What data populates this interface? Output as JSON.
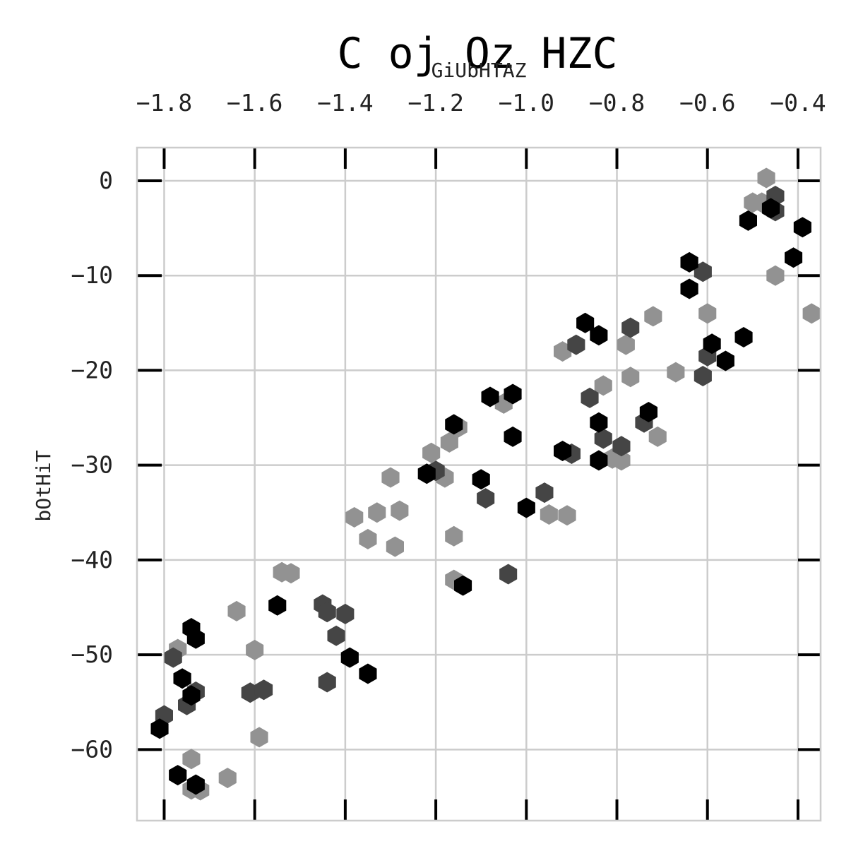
{
  "chart_data": {
    "type": "scatter",
    "title": "C oj Oz HZC",
    "xlabel": "GiUbHTAZ",
    "ylabel": "bOtHiT",
    "xlim": [
      -1.86,
      -0.35
    ],
    "ylim": [
      -67.5,
      3.5
    ],
    "x_axis_position": "top",
    "marker": "hexagon",
    "grid": true,
    "x_ticks": [
      -1.8,
      -1.6,
      -1.4,
      -1.2,
      -1.0,
      -0.8,
      -0.6,
      -0.4
    ],
    "x_tick_labels": [
      "−1.8",
      "−1.6",
      "−1.4",
      "−1.2",
      "−1.0",
      "−0.8",
      "−0.6",
      "−0.4"
    ],
    "y_ticks": [
      0,
      -10,
      -20,
      -30,
      -40,
      -50,
      -60
    ],
    "y_tick_labels": [
      "0",
      "−10",
      "−20",
      "−30",
      "−40",
      "−50",
      "−60"
    ],
    "series": [
      {
        "color": "#000000",
        "points": [
          [
            -1.81,
            -57.8
          ],
          [
            -1.77,
            -62.7
          ],
          [
            -1.76,
            -52.5
          ],
          [
            -1.74,
            -54.3
          ],
          [
            -1.74,
            -47.2
          ],
          [
            -1.73,
            -48.3
          ],
          [
            -1.73,
            -63.7
          ],
          [
            -1.55,
            -44.8
          ],
          [
            -1.39,
            -50.3
          ],
          [
            -1.35,
            -52.0
          ],
          [
            -1.22,
            -30.9
          ],
          [
            -1.16,
            -25.7
          ],
          [
            -1.14,
            -42.7
          ],
          [
            -1.1,
            -31.5
          ],
          [
            -1.08,
            -22.8
          ],
          [
            -1.03,
            -22.5
          ],
          [
            -1.03,
            -27.0
          ],
          [
            -1.0,
            -34.5
          ],
          [
            -0.92,
            -28.5
          ],
          [
            -0.87,
            -15.0
          ],
          [
            -0.84,
            -16.3
          ],
          [
            -0.84,
            -25.5
          ],
          [
            -0.84,
            -29.5
          ],
          [
            -0.73,
            -24.4
          ],
          [
            -0.64,
            -8.6
          ],
          [
            -0.64,
            -11.4
          ],
          [
            -0.59,
            -17.2
          ],
          [
            -0.56,
            -19.0
          ],
          [
            -0.52,
            -16.5
          ],
          [
            -0.51,
            -4.2
          ],
          [
            -0.46,
            -2.9
          ],
          [
            -0.41,
            -8.1
          ],
          [
            -0.39,
            -4.9
          ]
        ]
      },
      {
        "color": "#454545",
        "points": [
          [
            -1.8,
            -56.4
          ],
          [
            -1.78,
            -50.3
          ],
          [
            -1.75,
            -55.3
          ],
          [
            -1.73,
            -53.9
          ],
          [
            -1.61,
            -54.0
          ],
          [
            -1.58,
            -53.7
          ],
          [
            -1.45,
            -44.7
          ],
          [
            -1.44,
            -45.5
          ],
          [
            -1.42,
            -48.0
          ],
          [
            -1.4,
            -45.7
          ],
          [
            -1.44,
            -52.9
          ],
          [
            -1.2,
            -30.6
          ],
          [
            -1.09,
            -33.5
          ],
          [
            -1.04,
            -41.5
          ],
          [
            -0.96,
            -32.9
          ],
          [
            -0.9,
            -28.8
          ],
          [
            -0.89,
            -17.3
          ],
          [
            -0.86,
            -22.9
          ],
          [
            -0.83,
            -27.2
          ],
          [
            -0.79,
            -28.0
          ],
          [
            -0.77,
            -15.5
          ],
          [
            -0.74,
            -25.5
          ],
          [
            -0.61,
            -9.6
          ],
          [
            -0.6,
            -18.5
          ],
          [
            -0.61,
            -20.6
          ],
          [
            -0.45,
            -1.6
          ],
          [
            -0.45,
            -3.2
          ]
        ]
      },
      {
        "color": "#929292",
        "points": [
          [
            -1.77,
            -49.4
          ],
          [
            -1.74,
            -61.0
          ],
          [
            -1.74,
            -64.2
          ],
          [
            -1.72,
            -64.3
          ],
          [
            -1.66,
            -63.0
          ],
          [
            -1.64,
            -45.4
          ],
          [
            -1.6,
            -49.5
          ],
          [
            -1.59,
            -58.7
          ],
          [
            -1.54,
            -41.3
          ],
          [
            -1.52,
            -41.4
          ],
          [
            -1.38,
            -35.5
          ],
          [
            -1.35,
            -37.8
          ],
          [
            -1.33,
            -35.0
          ],
          [
            -1.3,
            -31.3
          ],
          [
            -1.29,
            -38.6
          ],
          [
            -1.28,
            -34.8
          ],
          [
            -1.21,
            -28.7
          ],
          [
            -1.18,
            -31.3
          ],
          [
            -1.17,
            -27.6
          ],
          [
            -1.15,
            -26.0
          ],
          [
            -1.16,
            -37.5
          ],
          [
            -1.16,
            -42.1
          ],
          [
            -1.05,
            -23.5
          ],
          [
            -0.95,
            -35.2
          ],
          [
            -0.91,
            -35.3
          ],
          [
            -0.92,
            -18.0
          ],
          [
            -0.83,
            -21.6
          ],
          [
            -0.81,
            -29.3
          ],
          [
            -0.79,
            -29.5
          ],
          [
            -0.78,
            -17.3
          ],
          [
            -0.77,
            -20.7
          ],
          [
            -0.72,
            -14.3
          ],
          [
            -0.71,
            -27.0
          ],
          [
            -0.67,
            -20.2
          ],
          [
            -0.6,
            -14.0
          ],
          [
            -0.5,
            -2.3
          ],
          [
            -0.48,
            -2.3
          ],
          [
            -0.47,
            0.3
          ],
          [
            -0.45,
            -10.0
          ],
          [
            -0.37,
            -14.0
          ]
        ]
      }
    ]
  }
}
